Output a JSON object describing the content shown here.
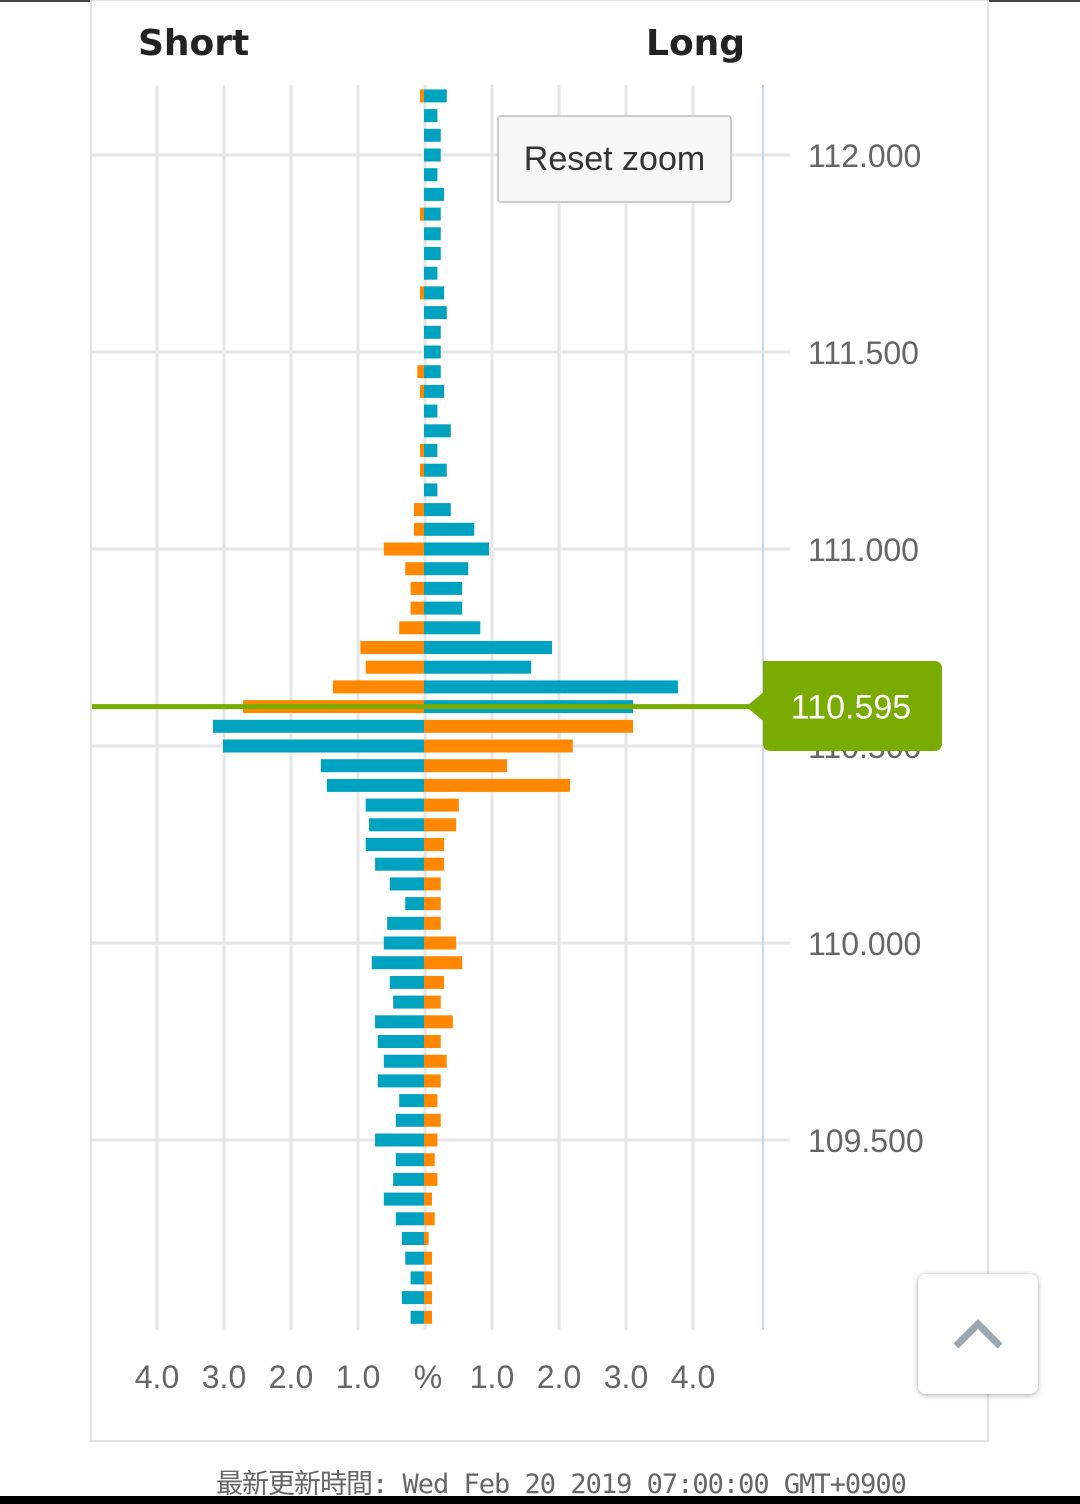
{
  "chart_data": {
    "type": "bar",
    "orientation": "horizontal-butterfly",
    "left_title": "Short",
    "right_title": "Long",
    "x_unit_label": "%",
    "x_ticks_left": [
      "4.0",
      "3.0",
      "2.0",
      "1.0"
    ],
    "x_ticks_right": [
      "1.0",
      "2.0",
      "3.0",
      "4.0"
    ],
    "xlim": [
      0,
      5
    ],
    "y_ticks": [
      "112.000",
      "111.500",
      "111.000",
      "110.500",
      "110.000",
      "109.500"
    ],
    "y_tick_values": [
      112.0,
      111.5,
      111.0,
      110.5,
      110.0,
      109.5
    ],
    "current_price": 110.595,
    "current_price_label": "110.595",
    "colors": {
      "orange": "#ff8800",
      "teal": "#00a3bf",
      "current": "#7aab00"
    },
    "color_rule": "price above current: short orange / long teal; below: short teal / long orange",
    "prices": [
      112.15,
      112.1,
      112.05,
      112.0,
      111.95,
      111.9,
      111.85,
      111.8,
      111.75,
      111.7,
      111.65,
      111.6,
      111.55,
      111.5,
      111.45,
      111.4,
      111.35,
      111.3,
      111.25,
      111.2,
      111.15,
      111.1,
      111.05,
      111.0,
      110.95,
      110.9,
      110.85,
      110.8,
      110.75,
      110.7,
      110.65,
      110.6,
      110.55,
      110.5,
      110.45,
      110.4,
      110.35,
      110.3,
      110.25,
      110.2,
      110.15,
      110.1,
      110.05,
      110.0,
      109.95,
      109.9,
      109.85,
      109.8,
      109.75,
      109.7,
      109.65,
      109.6,
      109.55,
      109.5,
      109.45,
      109.4,
      109.35,
      109.3,
      109.25,
      109.2,
      109.15,
      109.1,
      109.05
    ],
    "series": [
      {
        "name": "Short",
        "values": [
          0.06,
          0,
          0,
          0,
          0,
          0,
          0.06,
          0,
          0,
          0,
          0.06,
          0,
          0,
          0,
          0.1,
          0.06,
          0,
          0,
          0.06,
          0.06,
          0,
          0.15,
          0.15,
          0.6,
          0.28,
          0.2,
          0.2,
          0.37,
          0.95,
          0.87,
          1.36,
          2.7,
          3.15,
          3.0,
          1.54,
          1.45,
          0.87,
          0.82,
          0.87,
          0.73,
          0.51,
          0.28,
          0.55,
          0.6,
          0.78,
          0.51,
          0.46,
          0.73,
          0.69,
          0.6,
          0.69,
          0.37,
          0.42,
          0.73,
          0.42,
          0.46,
          0.6,
          0.42,
          0.33,
          0.28,
          0.2,
          0.33,
          0.2
        ]
      },
      {
        "name": "Long",
        "values": [
          0.34,
          0.2,
          0.25,
          0.25,
          0.2,
          0.3,
          0.25,
          0.25,
          0.25,
          0.2,
          0.3,
          0.34,
          0.25,
          0.25,
          0.25,
          0.3,
          0.2,
          0.4,
          0.2,
          0.34,
          0.2,
          0.4,
          0.75,
          0.97,
          0.66,
          0.57,
          0.57,
          0.84,
          1.91,
          1.6,
          3.79,
          3.12,
          3.12,
          2.22,
          1.24,
          2.18,
          0.52,
          0.48,
          0.3,
          0.3,
          0.25,
          0.25,
          0.25,
          0.48,
          0.57,
          0.3,
          0.25,
          0.43,
          0.25,
          0.34,
          0.25,
          0.2,
          0.25,
          0.2,
          0.16,
          0.2,
          0.12,
          0.16,
          0.07,
          0.12,
          0.12,
          0.12,
          0.12
        ]
      }
    ]
  },
  "ui": {
    "reset_zoom": "Reset zoom",
    "footer": "最新更新時間: Wed Feb 20 2019 07:00:00 GMT+0900"
  }
}
